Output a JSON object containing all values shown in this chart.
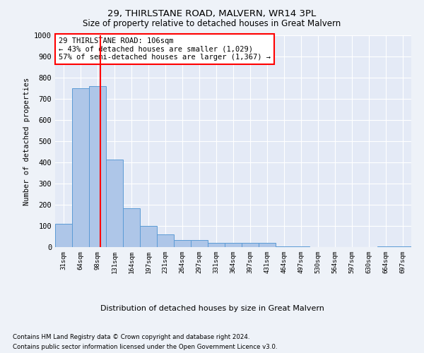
{
  "title1": "29, THIRLSTANE ROAD, MALVERN, WR14 3PL",
  "title2": "Size of property relative to detached houses in Great Malvern",
  "xlabel": "Distribution of detached houses by size in Great Malvern",
  "ylabel": "Number of detached properties",
  "categories": [
    "31sqm",
    "64sqm",
    "98sqm",
    "131sqm",
    "164sqm",
    "197sqm",
    "231sqm",
    "264sqm",
    "297sqm",
    "331sqm",
    "364sqm",
    "397sqm",
    "431sqm",
    "464sqm",
    "497sqm",
    "530sqm",
    "564sqm",
    "597sqm",
    "630sqm",
    "664sqm",
    "697sqm"
  ],
  "values": [
    110,
    750,
    760,
    415,
    185,
    100,
    60,
    35,
    35,
    20,
    20,
    20,
    20,
    5,
    5,
    0,
    0,
    0,
    0,
    5,
    5
  ],
  "bar_color": "#aec6e8",
  "bar_edge_color": "#5b9bd5",
  "vline_x_index": 2.18,
  "annotation_text": "29 THIRLSTANE ROAD: 106sqm\n← 43% of detached houses are smaller (1,029)\n57% of semi-detached houses are larger (1,367) →",
  "annotation_box_color": "white",
  "annotation_box_edge_color": "red",
  "vline_color": "red",
  "ylim": [
    0,
    1000
  ],
  "yticks": [
    0,
    100,
    200,
    300,
    400,
    500,
    600,
    700,
    800,
    900,
    1000
  ],
  "footer1": "Contains HM Land Registry data © Crown copyright and database right 2024.",
  "footer2": "Contains public sector information licensed under the Open Government Licence v3.0.",
  "bg_color": "#eef2f8",
  "plot_bg_color": "#e4eaf6"
}
